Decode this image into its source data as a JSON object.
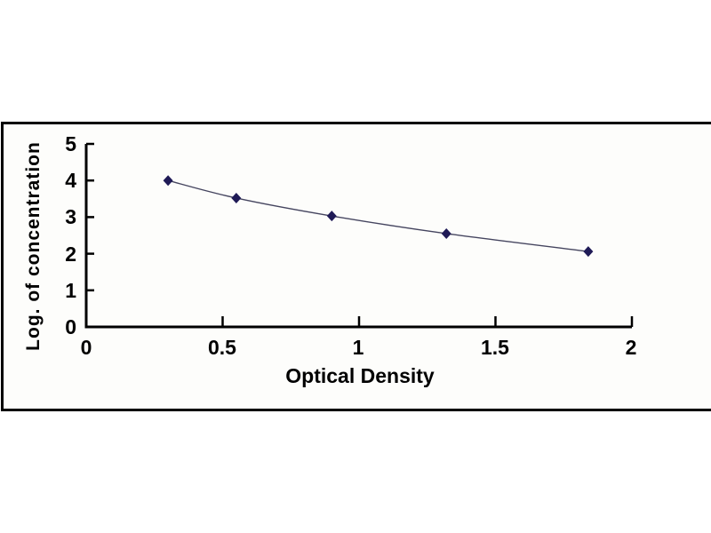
{
  "window": {
    "background": "#ffffff"
  },
  "frame": {
    "border_color": "#000000",
    "fill": "#fdfdfb"
  },
  "chart_data": {
    "type": "scatter",
    "title": "",
    "xlabel": "Optical Density",
    "ylabel": "Log. of concentration",
    "points": [
      {
        "x": 0.3,
        "y": 4.0
      },
      {
        "x": 0.55,
        "y": 3.52
      },
      {
        "x": 0.9,
        "y": 3.03
      },
      {
        "x": 1.32,
        "y": 2.55
      },
      {
        "x": 1.84,
        "y": 2.06
      }
    ],
    "xticks": [
      "0",
      "0.5",
      "1",
      "1.5",
      "2"
    ],
    "yticks": [
      "0",
      "1",
      "2",
      "3",
      "4",
      "5"
    ],
    "xlim": [
      0,
      2
    ],
    "ylim": [
      0,
      5
    ],
    "grid": false,
    "legend_position": "none",
    "line_smoothed": true,
    "marker": "diamond",
    "colors": {
      "marker": "#1f1a56",
      "line": "#45455f",
      "axis": "#000000"
    }
  }
}
